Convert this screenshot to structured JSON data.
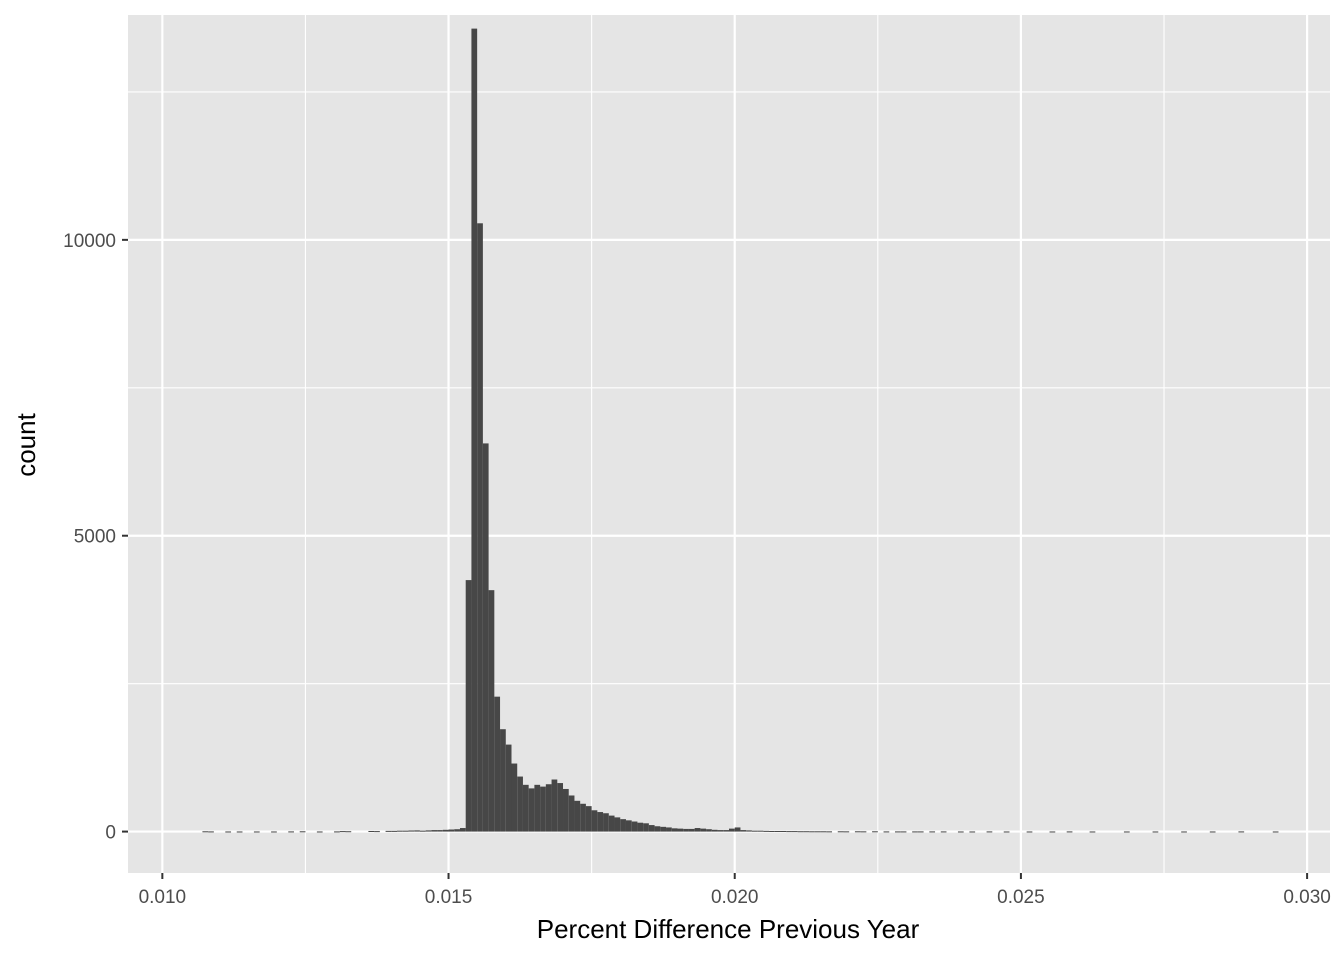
{
  "chart_data": {
    "type": "bar",
    "subtype": "histogram",
    "title": "",
    "xlabel": "Percent Difference Previous Year",
    "ylabel": "count",
    "xlim": [
      0.0094,
      0.0304
    ],
    "ylim": [
      -700,
      13800
    ],
    "x_ticks": [
      0.01,
      0.015,
      0.02,
      0.025,
      0.03
    ],
    "x_tick_labels": [
      "0.010",
      "0.015",
      "0.020",
      "0.025",
      "0.030"
    ],
    "y_ticks": [
      0,
      5000,
      10000
    ],
    "y_tick_labels": [
      "0",
      "5000",
      "10000"
    ],
    "grid": true,
    "panel_background": "#e5e5e5",
    "grid_color": "#ffffff",
    "bar_color": "#474747",
    "bin_width": 0.0001,
    "bins": [
      [
        0.0107,
        5
      ],
      [
        0.0108,
        3
      ],
      [
        0.0111,
        2
      ],
      [
        0.0113,
        2
      ],
      [
        0.0116,
        2
      ],
      [
        0.0119,
        2
      ],
      [
        0.0122,
        3
      ],
      [
        0.0124,
        5
      ],
      [
        0.0127,
        2
      ],
      [
        0.013,
        3
      ],
      [
        0.0131,
        8
      ],
      [
        0.0132,
        6
      ],
      [
        0.0136,
        10
      ],
      [
        0.0137,
        8
      ],
      [
        0.0139,
        12
      ],
      [
        0.014,
        12
      ],
      [
        0.0141,
        15
      ],
      [
        0.0142,
        15
      ],
      [
        0.0143,
        18
      ],
      [
        0.0144,
        20
      ],
      [
        0.0145,
        15
      ],
      [
        0.0146,
        20
      ],
      [
        0.0147,
        25
      ],
      [
        0.0148,
        25
      ],
      [
        0.0149,
        30
      ],
      [
        0.015,
        35
      ],
      [
        0.0151,
        40
      ],
      [
        0.0152,
        60
      ],
      [
        0.0153,
        4250
      ],
      [
        0.0154,
        13570
      ],
      [
        0.0155,
        10280
      ],
      [
        0.0156,
        6560
      ],
      [
        0.0157,
        4080
      ],
      [
        0.0158,
        2280
      ],
      [
        0.0159,
        1730
      ],
      [
        0.016,
        1470
      ],
      [
        0.0161,
        1150
      ],
      [
        0.0162,
        930
      ],
      [
        0.0163,
        790
      ],
      [
        0.0164,
        730
      ],
      [
        0.0165,
        790
      ],
      [
        0.0166,
        760
      ],
      [
        0.0167,
        800
      ],
      [
        0.0168,
        880
      ],
      [
        0.0169,
        820
      ],
      [
        0.017,
        720
      ],
      [
        0.0171,
        610
      ],
      [
        0.0172,
        520
      ],
      [
        0.0173,
        470
      ],
      [
        0.0174,
        430
      ],
      [
        0.0175,
        360
      ],
      [
        0.0176,
        330
      ],
      [
        0.0177,
        310
      ],
      [
        0.0178,
        270
      ],
      [
        0.0179,
        240
      ],
      [
        0.018,
        210
      ],
      [
        0.0181,
        190
      ],
      [
        0.0182,
        170
      ],
      [
        0.0183,
        150
      ],
      [
        0.0184,
        140
      ],
      [
        0.0185,
        110
      ],
      [
        0.0186,
        90
      ],
      [
        0.0187,
        80
      ],
      [
        0.0188,
        70
      ],
      [
        0.0189,
        55
      ],
      [
        0.019,
        50
      ],
      [
        0.0191,
        45
      ],
      [
        0.0192,
        45
      ],
      [
        0.0193,
        60
      ],
      [
        0.0194,
        50
      ],
      [
        0.0195,
        40
      ],
      [
        0.0196,
        30
      ],
      [
        0.0197,
        25
      ],
      [
        0.0198,
        25
      ],
      [
        0.0199,
        50
      ],
      [
        0.02,
        70
      ],
      [
        0.0201,
        25
      ],
      [
        0.0202,
        20
      ],
      [
        0.0203,
        15
      ],
      [
        0.0204,
        15
      ],
      [
        0.0205,
        12
      ],
      [
        0.0206,
        10
      ],
      [
        0.0207,
        10
      ],
      [
        0.0208,
        10
      ],
      [
        0.0209,
        8
      ],
      [
        0.021,
        8
      ],
      [
        0.0211,
        6
      ],
      [
        0.0212,
        6
      ],
      [
        0.0213,
        5
      ],
      [
        0.0214,
        5
      ],
      [
        0.0215,
        5
      ],
      [
        0.0216,
        4
      ],
      [
        0.0218,
        5
      ],
      [
        0.0219,
        4
      ],
      [
        0.0221,
        5
      ],
      [
        0.0222,
        4
      ],
      [
        0.0224,
        5
      ],
      [
        0.0226,
        3
      ],
      [
        0.0228,
        3
      ],
      [
        0.0229,
        3
      ],
      [
        0.0231,
        3
      ],
      [
        0.0232,
        3
      ],
      [
        0.0234,
        3
      ],
      [
        0.0236,
        3
      ],
      [
        0.0239,
        2
      ],
      [
        0.0241,
        2
      ],
      [
        0.0244,
        3
      ],
      [
        0.0247,
        2
      ],
      [
        0.0251,
        2
      ],
      [
        0.0255,
        2
      ],
      [
        0.0258,
        3
      ],
      [
        0.0262,
        2
      ],
      [
        0.0268,
        2
      ],
      [
        0.0273,
        2
      ],
      [
        0.0278,
        2
      ],
      [
        0.0283,
        2
      ],
      [
        0.0288,
        3
      ],
      [
        0.0294,
        2
      ]
    ]
  }
}
